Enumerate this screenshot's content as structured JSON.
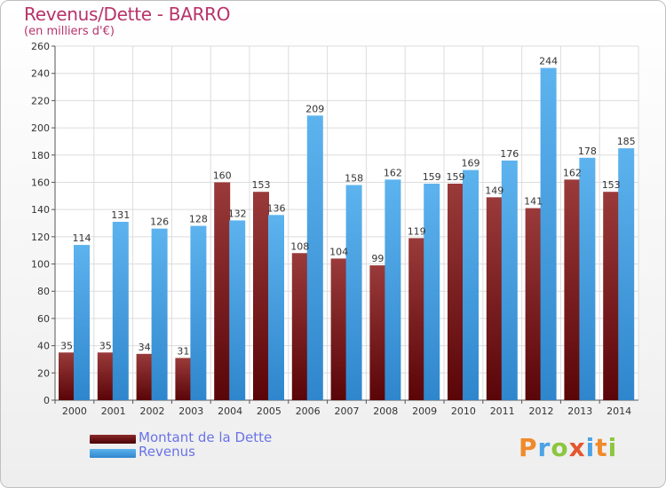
{
  "title": "Revenus/Dette - BARRO",
  "subtitle": "(en milliers d'€)",
  "logo": {
    "text": "Proxiti"
  },
  "colors": {
    "dette": "#7a1a1f",
    "revenus": "#4aa3e6",
    "title": "#b8336a",
    "legend_text": "#6a73e6"
  },
  "chart_data": {
    "type": "bar",
    "categories": [
      "2000",
      "2001",
      "2002",
      "2003",
      "2004",
      "2005",
      "2006",
      "2007",
      "2008",
      "2009",
      "2010",
      "2011",
      "2012",
      "2013",
      "2014"
    ],
    "series": [
      {
        "name": "Montant de la Dette",
        "values": [
          35,
          35,
          34,
          31,
          160,
          153,
          108,
          104,
          99,
          119,
          159,
          149,
          141,
          162,
          153
        ]
      },
      {
        "name": "Revenus",
        "values": [
          114,
          131,
          126,
          128,
          132,
          136,
          209,
          158,
          162,
          159,
          169,
          176,
          244,
          178,
          185
        ]
      }
    ],
    "ylim": [
      0,
      260
    ],
    "yticks": [
      0,
      20,
      40,
      60,
      80,
      100,
      120,
      140,
      160,
      180,
      200,
      220,
      240,
      260
    ],
    "grid": true,
    "legend_position": "bottom-left"
  }
}
